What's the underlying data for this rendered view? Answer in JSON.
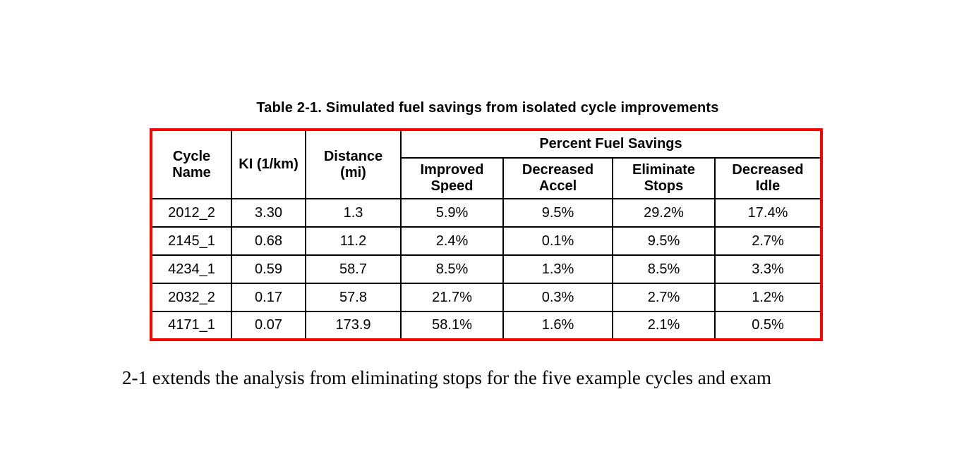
{
  "page": {
    "background": "#ffffff",
    "text_color": "#000000"
  },
  "table": {
    "caption": "Table 2-1. Simulated fuel savings from isolated cycle improvements",
    "border_color": "#ff0000",
    "grid_color": "#000000",
    "columns": [
      "Cycle Name",
      "KI (1/km)",
      "Distance (mi)"
    ],
    "group_header": "Percent Fuel Savings",
    "sub_columns": [
      "Improved Speed",
      "Decreased Accel",
      "Eliminate Stops",
      "Decreased Idle"
    ],
    "rows": [
      [
        "2012_2",
        "3.30",
        "1.3",
        "5.9%",
        "9.5%",
        "29.2%",
        "17.4%"
      ],
      [
        "2145_1",
        "0.68",
        "11.2",
        "2.4%",
        "0.1%",
        "9.5%",
        "2.7%"
      ],
      [
        "4234_1",
        "0.59",
        "58.7",
        "8.5%",
        "1.3%",
        "8.5%",
        "3.3%"
      ],
      [
        "2032_2",
        "0.17",
        "57.8",
        "21.7%",
        "0.3%",
        "2.7%",
        "1.2%"
      ],
      [
        "4171_1",
        "0.07",
        "173.9",
        "58.1%",
        "1.6%",
        "2.1%",
        "0.5%"
      ]
    ]
  },
  "body_text": "2-1 extends the analysis from eliminating stops for the five example cycles and exam"
}
